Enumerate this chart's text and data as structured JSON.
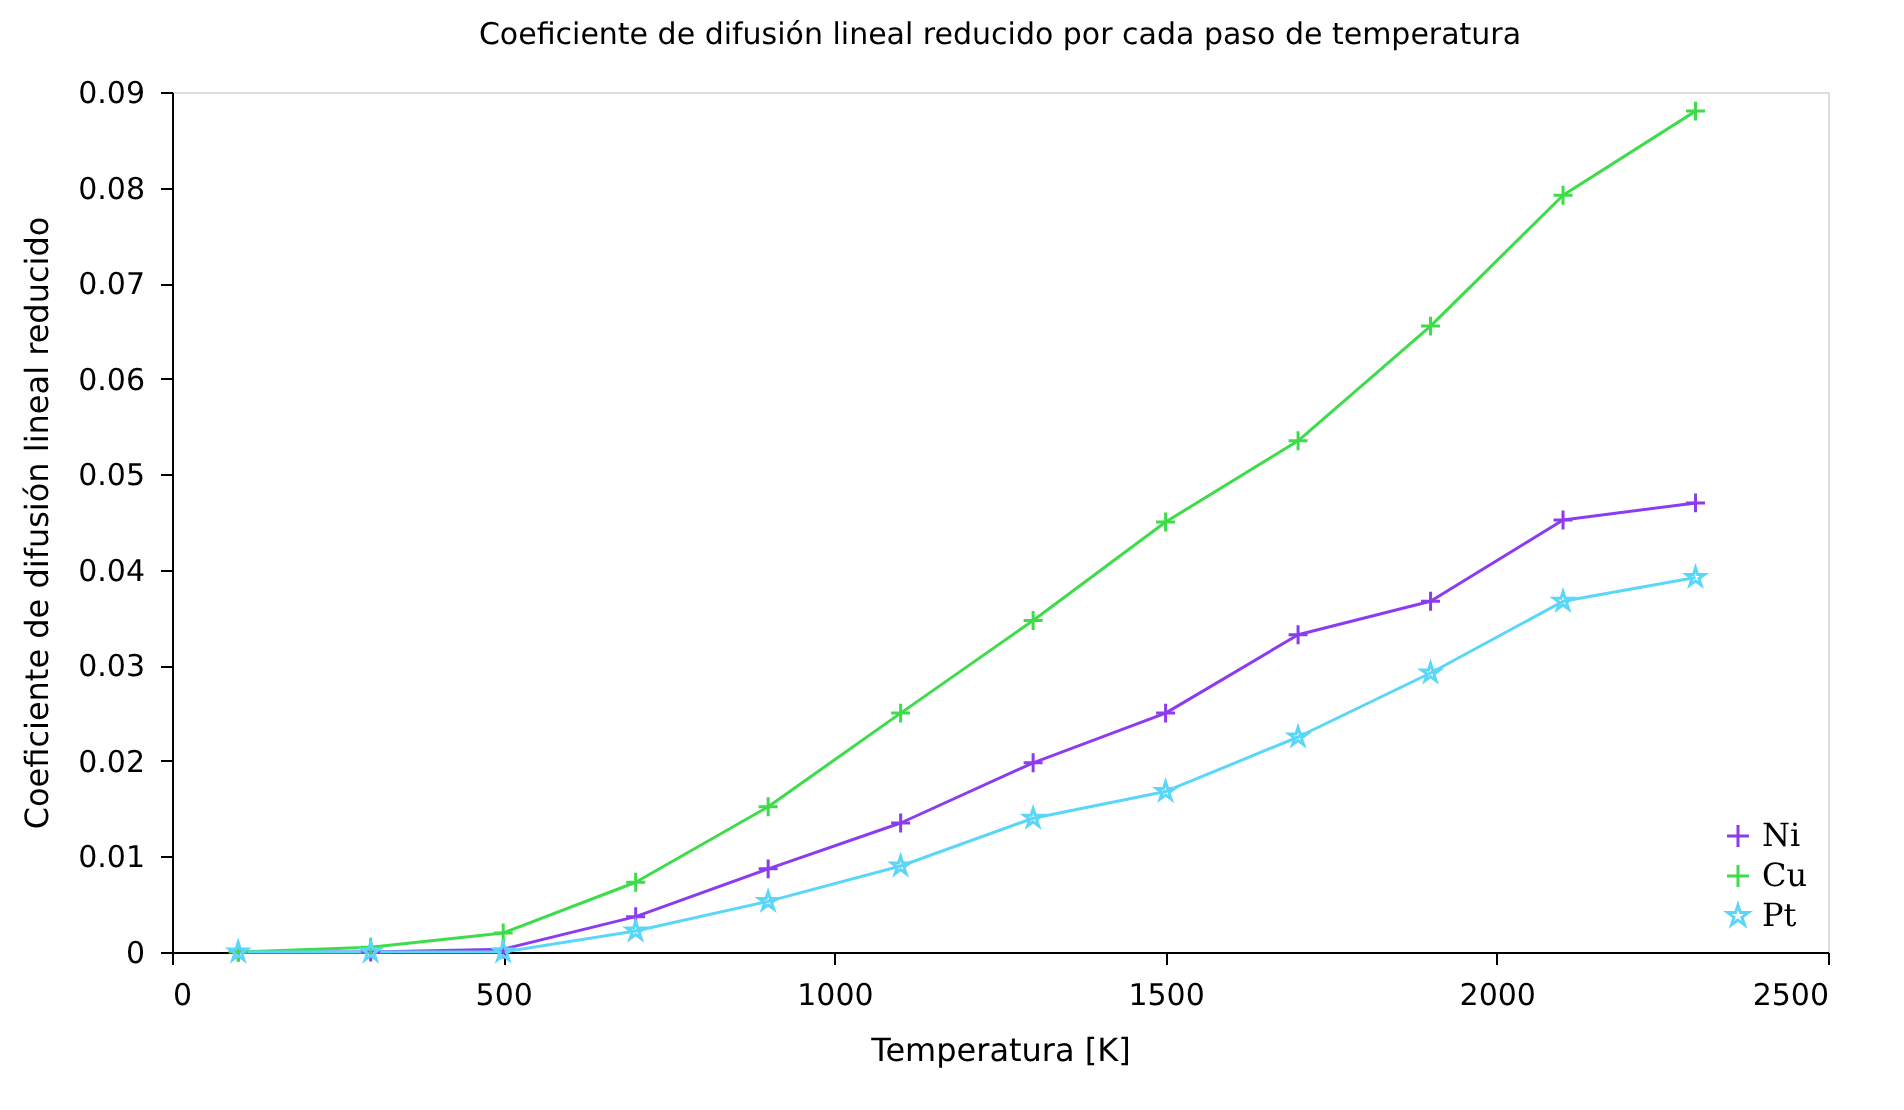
{
  "chart_data": {
    "type": "line",
    "title": "Coeficiente de difusión lineal reducido por cada paso de temperatura",
    "xlabel": "Temperatura [K]",
    "ylabel": "Coeficiente de difusión lineal reducido",
    "x": [
      100,
      300,
      500,
      700,
      900,
      1100,
      1300,
      1500,
      1700,
      1900,
      2100,
      2300
    ],
    "series": [
      {
        "name": "Ni",
        "color": "#8c3cf0",
        "marker": "cross",
        "values": [
          0,
          0,
          0.0003,
          0.0037,
          0.0087,
          0.0135,
          0.0198,
          0.025,
          0.0332,
          0.0367,
          0.0452,
          0.047
        ]
      },
      {
        "name": "Cu",
        "color": "#3ddc4a",
        "marker": "cross",
        "values": [
          0,
          0.0005,
          0.002,
          0.0073,
          0.0152,
          0.025,
          0.0347,
          0.045,
          0.0535,
          0.0655,
          0.0792,
          0.088
        ]
      },
      {
        "name": "Pt",
        "color": "#5ad6f8",
        "marker": "star",
        "values": [
          0,
          0,
          0,
          0.0022,
          0.0053,
          0.009,
          0.014,
          0.0168,
          0.0225,
          0.0292,
          0.0367,
          0.0392
        ]
      }
    ],
    "xlim": [
      0,
      2500
    ],
    "xticks": [
      0,
      500,
      1000,
      1500,
      2000,
      2500
    ],
    "ylim": [
      0,
      0.09
    ],
    "yticks": [
      0,
      0.01,
      0.02,
      0.03,
      0.04,
      0.05,
      0.06,
      0.07,
      0.08,
      0.09
    ],
    "grid": false,
    "legend": "bottom right",
    "line_style": "solid"
  }
}
